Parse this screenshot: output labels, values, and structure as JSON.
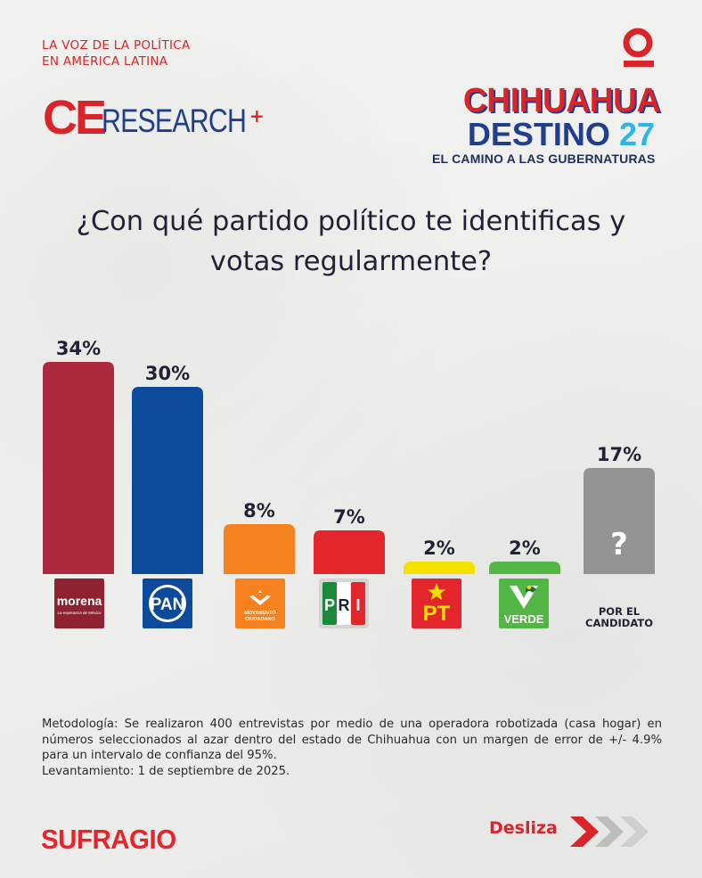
{
  "header": {
    "tagline_line1": "LA VOZ DE LA POLÍTICA",
    "tagline_line2": "EN AMÉRICA LATINA",
    "brand_ce": "CE",
    "brand_research": "RESEARCH",
    "campaign_line1": "CHIHUAHUA",
    "campaign_line2": "DESTINO",
    "campaign_number": "27",
    "campaign_line3": "EL CAMINO A LAS GUBERNATURAS"
  },
  "colors": {
    "accent_red": "#d9252a",
    "brand_blue": "#1f3f8c"
  },
  "chart_data": {
    "type": "bar",
    "title": "¿Con qué partido político te identificas y votas regularmente?",
    "categories": [
      "morena",
      "PAN",
      "MOVIMIENTO CIUDADANO",
      "PRI",
      "PT",
      "VERDE",
      "POR EL CANDIDATO"
    ],
    "values": [
      34,
      30,
      8,
      7,
      2,
      2,
      17
    ],
    "value_labels": [
      "34%",
      "30%",
      "8%",
      "7%",
      "2%",
      "2%",
      "17%"
    ],
    "colors": [
      "#ab2a3e",
      "#0c4a9c",
      "#f5821f",
      "#e3262b",
      "#f5e100",
      "#52b644",
      "#939393"
    ],
    "unknown_mark": "?",
    "xlabel": "",
    "ylabel": "",
    "ylim": [
      0,
      34
    ]
  },
  "logos": {
    "morena": "morena",
    "morena_sub": "La esperanza de México",
    "pan": "PAN",
    "mc_line1": "MOVIMIENTO",
    "mc_line2": "CIUDADANO",
    "pri_p": "P",
    "pri_r": "R",
    "pri_i": "I",
    "pt": "PT",
    "verde": "VERDE",
    "candidate_line1": "POR EL",
    "candidate_line2": "CANDIDATO"
  },
  "methodology": {
    "text": "Metodología: Se realizaron 400 entrevistas por medio de una operadora robotizada (casa hogar) en números seleccionados al azar dentro del estado de Chihuahua con un margen de error de +/- 4.9% para un intervalo de confianza del 95%.",
    "fieldwork": "Levantamiento: 1 de septiembre de 2025."
  },
  "footer": {
    "brand": "SUFRAGIO",
    "swipe_label": "Desliza"
  }
}
